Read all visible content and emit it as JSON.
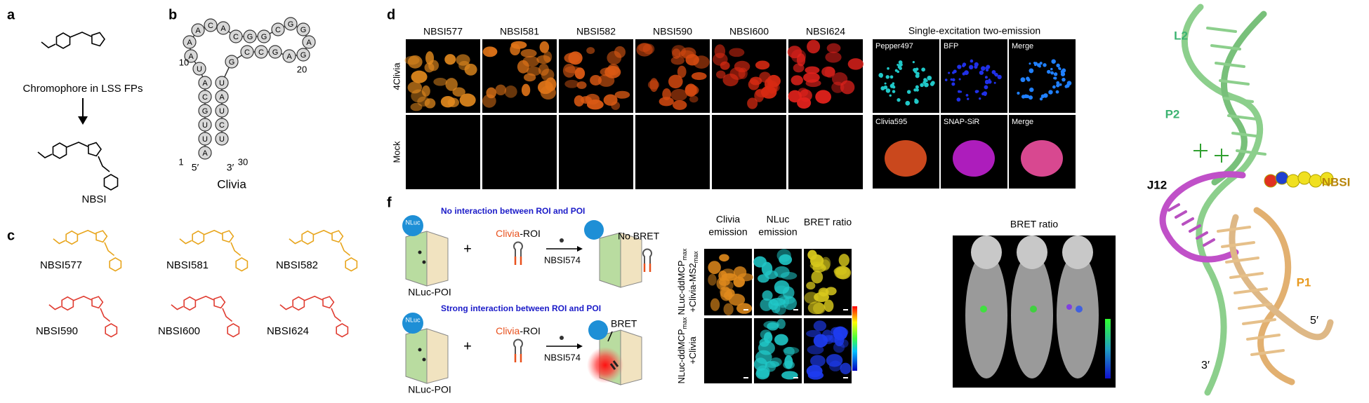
{
  "panel_a": {
    "label": "a",
    "caption": "Chromophore in LSS FPs",
    "product": "NBSI"
  },
  "panel_b": {
    "label": "b",
    "sequence": [
      "A",
      "U",
      "U",
      "G",
      "C",
      "A",
      "U",
      "A",
      "A",
      "A",
      "C",
      "A",
      "C",
      "G",
      "G",
      "C",
      "G",
      "G",
      "A",
      "G",
      "A",
      "G",
      "C",
      "C",
      "G",
      "U",
      "A",
      "U",
      "C",
      "U"
    ],
    "numbers": [
      "1",
      "10",
      "20",
      "30"
    ],
    "ends": [
      "5′",
      "3′"
    ],
    "name": "Clivia"
  },
  "panel_c": {
    "label": "c",
    "compounds": [
      "NBSI577",
      "NBSI581",
      "NBSI582",
      "NBSI590",
      "NBSI600",
      "NBSI624"
    ]
  },
  "panel_d": {
    "label": "d",
    "columns": [
      "NBSI577",
      "NBSI581",
      "NBSI582",
      "NBSI590",
      "NBSI600",
      "NBSI624"
    ],
    "rows": [
      "4Clivia",
      "Mock"
    ],
    "side_title": "Single-excitation two-emission",
    "side_panels": [
      "Pepper497",
      "BFP",
      "Merge",
      "Clivia595",
      "SNAP-SiR",
      "Merge"
    ]
  },
  "panel_f": {
    "label": "f",
    "schemes": [
      {
        "title": "No interaction between ROI and POI",
        "donor": "NLuc",
        "rna": [
          "Clivia",
          "-ROI"
        ],
        "reagent": "NBSI574",
        "result": "No BRET",
        "protein": "NLuc-POI",
        "plus": "+"
      },
      {
        "title": "Strong interaction between ROI and POI",
        "donor": "NLuc",
        "rna": [
          "Clivia",
          "-ROI"
        ],
        "reagent": "NBSI574",
        "result": "BRET",
        "protein": "NLuc-POI",
        "plus": "+"
      }
    ],
    "image_columns": [
      [
        "Clivia",
        "emission"
      ],
      [
        "NLuc",
        "emission"
      ],
      [
        "BRET ratio"
      ]
    ],
    "image_rows": [
      [
        [
          "NLuc-ddMCP",
          "max"
        ],
        [
          "+Clivia-MS2",
          "max"
        ]
      ],
      [
        [
          "NLuc-ddMCP",
          "max"
        ],
        [
          "+Clivia"
        ]
      ]
    ],
    "mouse_title": "BRET ratio"
  },
  "structure": {
    "labels": [
      "L2",
      "P2",
      "J12",
      "NBSI",
      "P1",
      "5′",
      "3′"
    ]
  }
}
